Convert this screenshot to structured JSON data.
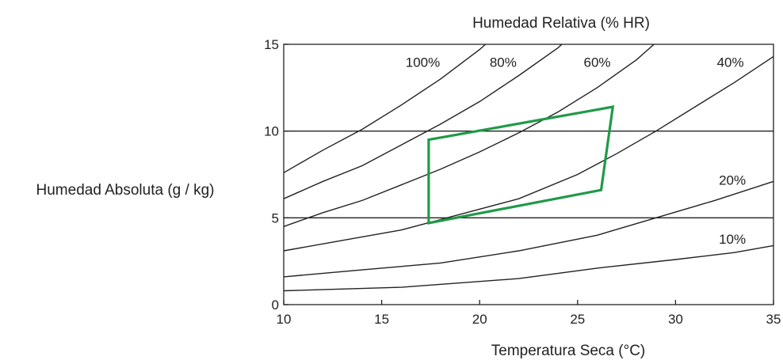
{
  "chart_data": {
    "type": "line",
    "title": "Humedad Relativa (% HR)",
    "xlabel": "Temperatura Seca (°C)",
    "ylabel": "Humedad Absoluta (g / kg)",
    "xlim": [
      10,
      35
    ],
    "ylim": [
      0,
      15
    ],
    "x_ticks": [
      10,
      15,
      20,
      25,
      30,
      35
    ],
    "y_ticks": [
      0,
      5,
      10,
      15
    ],
    "grid": "horizontal at 5 and 10",
    "colors": {
      "curves": "#222222",
      "zone": "#1f9a48"
    },
    "series": [
      {
        "name": "100%",
        "points": [
          [
            10,
            7.6
          ],
          [
            12,
            8.9
          ],
          [
            14,
            10.1
          ],
          [
            16,
            11.5
          ],
          [
            18,
            13.0
          ],
          [
            20,
            14.7
          ],
          [
            20.3,
            15.0
          ]
        ]
      },
      {
        "name": "80%",
        "points": [
          [
            10,
            6.1
          ],
          [
            12,
            7.1
          ],
          [
            14,
            8.0
          ],
          [
            16,
            9.2
          ],
          [
            18,
            10.4
          ],
          [
            20,
            11.7
          ],
          [
            22,
            13.2
          ],
          [
            24,
            14.8
          ],
          [
            24.2,
            15.0
          ]
        ]
      },
      {
        "name": "60%",
        "points": [
          [
            10,
            4.5
          ],
          [
            12,
            5.3
          ],
          [
            14,
            6.0
          ],
          [
            16,
            6.9
          ],
          [
            18,
            7.8
          ],
          [
            20,
            8.8
          ],
          [
            22,
            9.9
          ],
          [
            24,
            11.1
          ],
          [
            26,
            12.5
          ],
          [
            28,
            14.1
          ],
          [
            28.9,
            15.0
          ]
        ]
      },
      {
        "name": "40%",
        "points": [
          [
            10,
            3.1
          ],
          [
            13,
            3.7
          ],
          [
            16,
            4.3
          ],
          [
            19,
            5.2
          ],
          [
            22,
            6.1
          ],
          [
            25,
            7.5
          ],
          [
            27,
            8.7
          ],
          [
            29,
            10.0
          ],
          [
            31,
            11.4
          ],
          [
            33,
            12.8
          ],
          [
            35,
            14.3
          ]
        ]
      },
      {
        "name": "20%",
        "points": [
          [
            10,
            1.6
          ],
          [
            14,
            2.0
          ],
          [
            18,
            2.4
          ],
          [
            22,
            3.1
          ],
          [
            26,
            4.0
          ],
          [
            29,
            5.0
          ],
          [
            32,
            6.0
          ],
          [
            35,
            7.1
          ]
        ]
      },
      {
        "name": "10%",
        "points": [
          [
            10,
            0.8
          ],
          [
            16,
            1.0
          ],
          [
            22,
            1.5
          ],
          [
            26,
            2.1
          ],
          [
            30,
            2.6
          ],
          [
            33,
            3.0
          ],
          [
            35,
            3.4
          ]
        ]
      }
    ],
    "curve_labels": [
      {
        "text": "100%",
        "x": 17.1,
        "y": 13.7
      },
      {
        "text": "80%",
        "x": 21.2,
        "y": 13.7
      },
      {
        "text": "60%",
        "x": 26.0,
        "y": 13.7
      },
      {
        "text": "40%",
        "x": 32.8,
        "y": 13.7
      },
      {
        "text": "20%",
        "x": 32.9,
        "y": 6.9
      },
      {
        "text": "10%",
        "x": 32.9,
        "y": 3.5
      }
    ],
    "comfort_zone": {
      "points": [
        [
          17.4,
          4.7
        ],
        [
          26.2,
          6.6
        ],
        [
          26.8,
          11.4
        ],
        [
          17.4,
          9.5
        ]
      ]
    }
  }
}
